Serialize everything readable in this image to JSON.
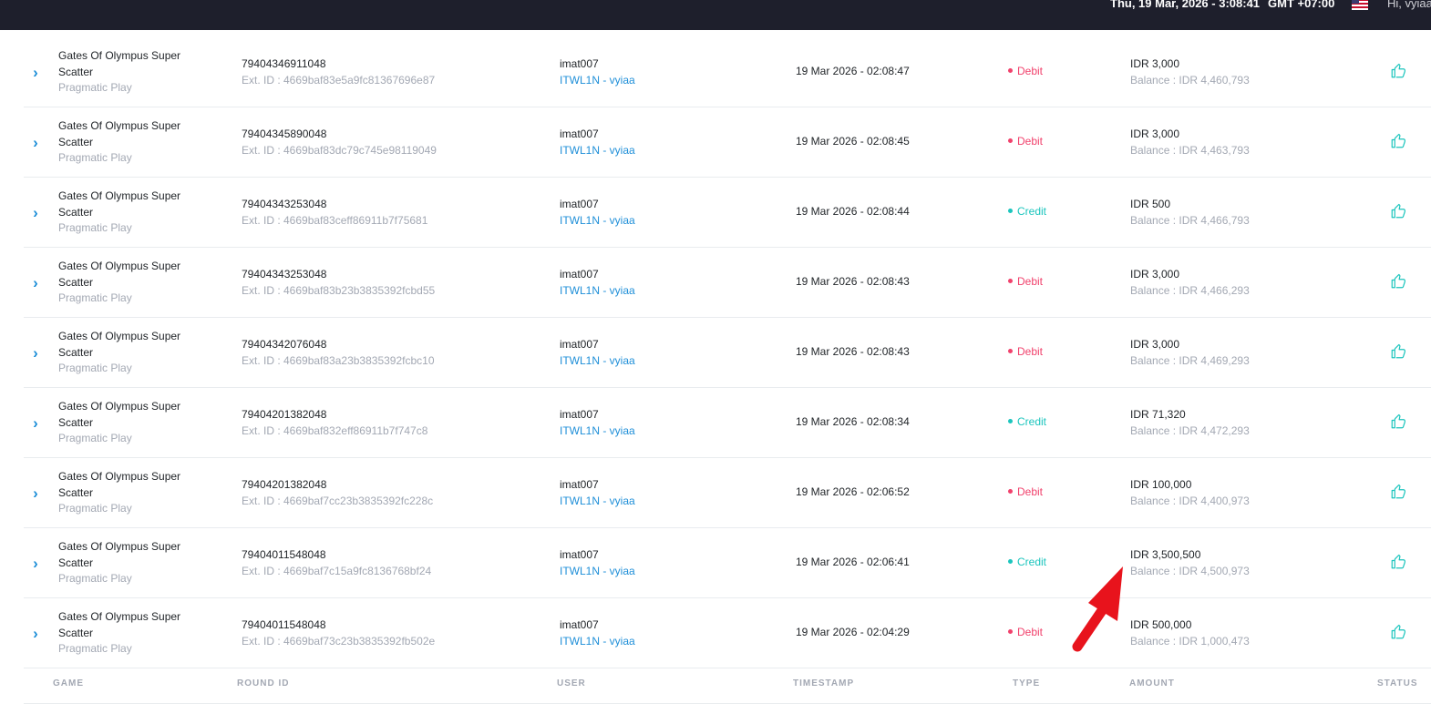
{
  "header": {
    "datetime": "Thu, 19 Mar, 2026 - 3:08:41",
    "timezone": "GMT +07:00",
    "language_flag_icon": "us-flag-icon",
    "greeting": "Hi, vyiaa"
  },
  "table": {
    "columns": [
      "GAME",
      "ROUND ID",
      "USER",
      "TIMESTAMP",
      "TYPE",
      "AMOUNT",
      "STATUS"
    ],
    "rows": [
      {
        "game": "Gates Of Olympus Super Scatter",
        "provider": "Pragmatic Play",
        "round_id": "79404346911048",
        "ext_id": "Ext. ID : 4669baf83e5a9fc81367696e87",
        "user": "imat007",
        "agent": "ITWL1N - vyiaa",
        "timestamp": "19 Mar 2026 - 02:08:47",
        "type": "Debit",
        "amount": "IDR 3,000",
        "balance": "Balance : IDR 4,460,793"
      },
      {
        "game": "Gates Of Olympus Super Scatter",
        "provider": "Pragmatic Play",
        "round_id": "79404345890048",
        "ext_id": "Ext. ID : 4669baf83dc79c745e98119049",
        "user": "imat007",
        "agent": "ITWL1N - vyiaa",
        "timestamp": "19 Mar 2026 - 02:08:45",
        "type": "Debit",
        "amount": "IDR 3,000",
        "balance": "Balance : IDR 4,463,793"
      },
      {
        "game": "Gates Of Olympus Super Scatter",
        "provider": "Pragmatic Play",
        "round_id": "79404343253048",
        "ext_id": "Ext. ID : 4669baf83ceff86911b7f75681",
        "user": "imat007",
        "agent": "ITWL1N - vyiaa",
        "timestamp": "19 Mar 2026 - 02:08:44",
        "type": "Credit",
        "amount": "IDR 500",
        "balance": "Balance : IDR 4,466,793"
      },
      {
        "game": "Gates Of Olympus Super Scatter",
        "provider": "Pragmatic Play",
        "round_id": "79404343253048",
        "ext_id": "Ext. ID : 4669baf83b23b3835392fcbd55",
        "user": "imat007",
        "agent": "ITWL1N - vyiaa",
        "timestamp": "19 Mar 2026 - 02:08:43",
        "type": "Debit",
        "amount": "IDR 3,000",
        "balance": "Balance : IDR 4,466,293"
      },
      {
        "game": "Gates Of Olympus Super Scatter",
        "provider": "Pragmatic Play",
        "round_id": "79404342076048",
        "ext_id": "Ext. ID : 4669baf83a23b3835392fcbc10",
        "user": "imat007",
        "agent": "ITWL1N - vyiaa",
        "timestamp": "19 Mar 2026 - 02:08:43",
        "type": "Debit",
        "amount": "IDR 3,000",
        "balance": "Balance : IDR 4,469,293"
      },
      {
        "game": "Gates Of Olympus Super Scatter",
        "provider": "Pragmatic Play",
        "round_id": "79404201382048",
        "ext_id": "Ext. ID : 4669baf832eff86911b7f747c8",
        "user": "imat007",
        "agent": "ITWL1N - vyiaa",
        "timestamp": "19 Mar 2026 - 02:08:34",
        "type": "Credit",
        "amount": "IDR 71,320",
        "balance": "Balance : IDR 4,472,293"
      },
      {
        "game": "Gates Of Olympus Super Scatter",
        "provider": "Pragmatic Play",
        "round_id": "79404201382048",
        "ext_id": "Ext. ID : 4669baf7cc23b3835392fc228c",
        "user": "imat007",
        "agent": "ITWL1N - vyiaa",
        "timestamp": "19 Mar 2026 - 02:06:52",
        "type": "Debit",
        "amount": "IDR 100,000",
        "balance": "Balance : IDR 4,400,973"
      },
      {
        "game": "Gates Of Olympus Super Scatter",
        "provider": "Pragmatic Play",
        "round_id": "79404011548048",
        "ext_id": "Ext. ID : 4669baf7c15a9fc8136768bf24",
        "user": "imat007",
        "agent": "ITWL1N - vyiaa",
        "timestamp": "19 Mar 2026 - 02:06:41",
        "type": "Credit",
        "amount": "IDR 3,500,500",
        "balance": "Balance : IDR 4,500,973"
      },
      {
        "game": "Gates Of Olympus Super Scatter",
        "provider": "Pragmatic Play",
        "round_id": "79404011548048",
        "ext_id": "Ext. ID : 4669baf73c23b3835392fb502e",
        "user": "imat007",
        "agent": "ITWL1N - vyiaa",
        "timestamp": "19 Mar 2026 - 02:04:29",
        "type": "Debit",
        "amount": "IDR 500,000",
        "balance": "Balance : IDR 1,000,473"
      }
    ]
  },
  "colors": {
    "topbar": "#1e1f2c",
    "debit": "#f1416c",
    "credit": "#1bc5bd",
    "link": "#1f8fd8",
    "annotation_arrow": "#e8131c"
  },
  "icons": {
    "expand": "chevron-right-icon",
    "status": "thumbs-up-icon",
    "annotation": "red-arrow-icon"
  }
}
